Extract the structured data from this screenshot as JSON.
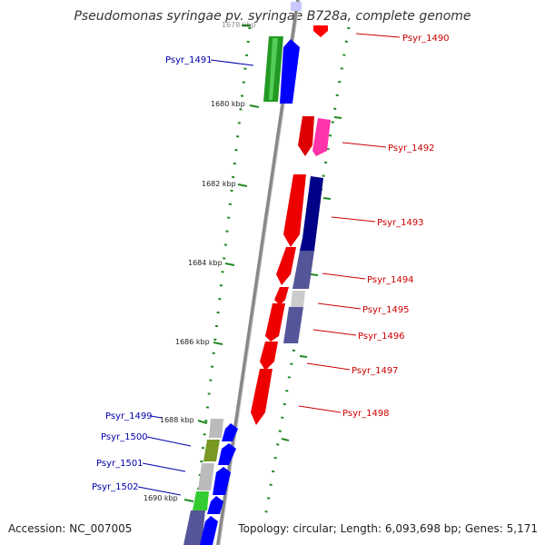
{
  "title": "Pseudomonas syringae pv. syringae B728a, complete genome",
  "footer": {
    "accession": "Accession: NC_007005",
    "topology": "Topology: circular; Length: 6,093,698 bp; Genes: 5,171"
  },
  "ticks": [
    "1678 kbp",
    "1680 kbp",
    "1682 kbp",
    "1684 kbp",
    "1686 kbp",
    "1688 kbp",
    "1690 kbp"
  ],
  "genes_right": [
    "Psyr_1490",
    "Psyr_1492",
    "Psyr_1493",
    "Psyr_1494",
    "Psyr_1495",
    "Psyr_1496",
    "Psyr_1497",
    "Psyr_1498"
  ],
  "genes_left": [
    "Psyr_1491",
    "Psyr_1499",
    "Psyr_1500",
    "Psyr_1501",
    "Psyr_1502"
  ],
  "colors": {
    "right_strand_gene": "#ff0000",
    "left_strand_gene": "#0000ff",
    "right_label": "#cc0000",
    "left_label": "#0000aa",
    "backbone": "#888888",
    "tick_marks": "#228822"
  }
}
